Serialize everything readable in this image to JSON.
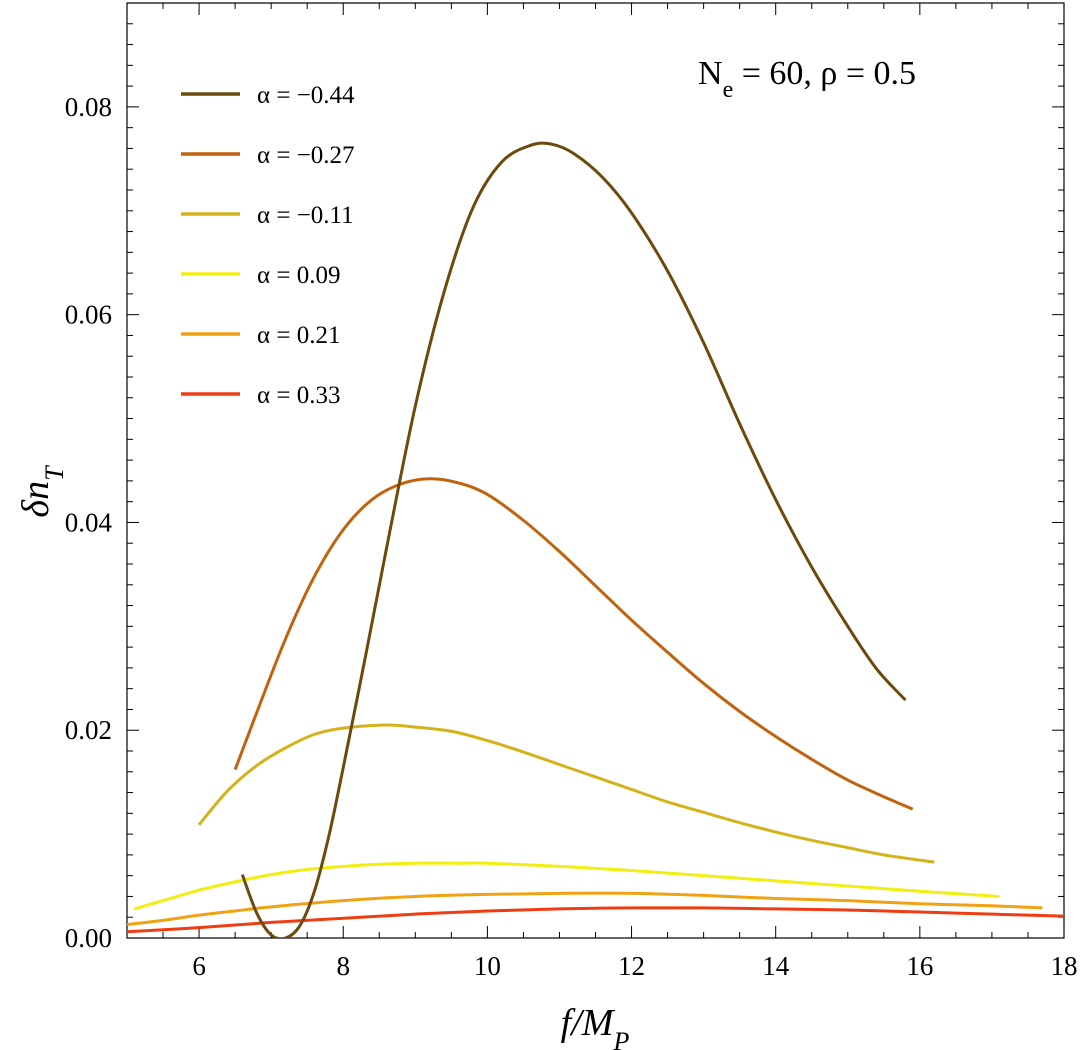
{
  "chart_data": {
    "type": "line",
    "annotation": "N_e = 60, ρ = 0.5",
    "xlabel": "f/M_P",
    "ylabel": "δn_T",
    "xlim": [
      5,
      18
    ],
    "ylim": [
      0,
      0.09
    ],
    "x_ticks": [
      "6",
      "8",
      "10",
      "12",
      "14",
      "16",
      "18"
    ],
    "y_ticks": [
      "0.00",
      "0.02",
      "0.04",
      "0.06",
      "0.08"
    ],
    "grid": false,
    "legend_position": "top-left",
    "series": [
      {
        "name": "α = −0.44",
        "color": "#6b4a0c",
        "points": [
          [
            6.6,
            0.0061
          ],
          [
            6.8,
            0.0024
          ],
          [
            7.0,
            0.0003
          ],
          [
            7.2,
            0.0
          ],
          [
            7.4,
            0.0012
          ],
          [
            7.6,
            0.0045
          ],
          [
            7.8,
            0.0098
          ],
          [
            8.0,
            0.0164
          ],
          [
            8.3,
            0.0268
          ],
          [
            8.6,
            0.0375
          ],
          [
            9.0,
            0.0512
          ],
          [
            9.4,
            0.0622
          ],
          [
            9.8,
            0.0703
          ],
          [
            10.2,
            0.0747
          ],
          [
            10.6,
            0.0763
          ],
          [
            10.9,
            0.0764
          ],
          [
            11.2,
            0.0755
          ],
          [
            11.6,
            0.0732
          ],
          [
            12.0,
            0.0698
          ],
          [
            12.5,
            0.0642
          ],
          [
            13.0,
            0.0573
          ],
          [
            13.5,
            0.0495
          ],
          [
            14.0,
            0.0422
          ],
          [
            14.5,
            0.0357
          ],
          [
            15.0,
            0.03
          ],
          [
            15.4,
            0.0259
          ],
          [
            15.8,
            0.0229
          ]
        ]
      },
      {
        "name": "α = −0.27",
        "color": "#c0620e",
        "points": [
          [
            6.5,
            0.0162
          ],
          [
            6.8,
            0.0217
          ],
          [
            7.2,
            0.0288
          ],
          [
            7.6,
            0.0348
          ],
          [
            8.0,
            0.0393
          ],
          [
            8.4,
            0.0422
          ],
          [
            8.8,
            0.0437
          ],
          [
            9.2,
            0.0442
          ],
          [
            9.6,
            0.0438
          ],
          [
            10.0,
            0.0427
          ],
          [
            10.5,
            0.0402
          ],
          [
            11.0,
            0.0372
          ],
          [
            11.5,
            0.0339
          ],
          [
            12.0,
            0.0306
          ],
          [
            12.5,
            0.0275
          ],
          [
            13.0,
            0.0245
          ],
          [
            13.5,
            0.0218
          ],
          [
            14.0,
            0.0194
          ],
          [
            14.5,
            0.0172
          ],
          [
            15.0,
            0.0152
          ],
          [
            15.5,
            0.0136
          ],
          [
            15.9,
            0.0124
          ]
        ]
      },
      {
        "name": "α = −0.11",
        "color": "#d4b21a",
        "points": [
          [
            6.0,
            0.0109
          ],
          [
            6.4,
            0.0142
          ],
          [
            6.8,
            0.0166
          ],
          [
            7.2,
            0.0183
          ],
          [
            7.6,
            0.0196
          ],
          [
            8.0,
            0.0202
          ],
          [
            8.6,
            0.0205
          ],
          [
            9.0,
            0.0203
          ],
          [
            9.5,
            0.0199
          ],
          [
            10.0,
            0.019
          ],
          [
            10.5,
            0.0179
          ],
          [
            11.0,
            0.0167
          ],
          [
            11.5,
            0.0155
          ],
          [
            12.0,
            0.0143
          ],
          [
            12.5,
            0.0131
          ],
          [
            13.0,
            0.0121
          ],
          [
            13.5,
            0.0111
          ],
          [
            14.0,
            0.0102
          ],
          [
            14.5,
            0.0094
          ],
          [
            15.0,
            0.0087
          ],
          [
            15.5,
            0.008
          ],
          [
            16.2,
            0.0073
          ]
        ]
      },
      {
        "name": "α = 0.09",
        "color": "#f2ee10",
        "points": [
          [
            5.1,
            0.0028
          ],
          [
            5.5,
            0.0036
          ],
          [
            6.0,
            0.0046
          ],
          [
            6.5,
            0.0054
          ],
          [
            7.0,
            0.0061
          ],
          [
            7.5,
            0.0066
          ],
          [
            8.0,
            0.0069
          ],
          [
            8.5,
            0.0071
          ],
          [
            9.0,
            0.0072
          ],
          [
            9.6,
            0.0072
          ],
          [
            10.0,
            0.0072
          ],
          [
            11.0,
            0.0069
          ],
          [
            12.0,
            0.0065
          ],
          [
            13.0,
            0.006
          ],
          [
            14.0,
            0.0055
          ],
          [
            15.0,
            0.005
          ],
          [
            16.0,
            0.0045
          ],
          [
            17.1,
            0.004
          ]
        ]
      },
      {
        "name": "α = 0.21",
        "color": "#f0a214",
        "points": [
          [
            5.0,
            0.0013
          ],
          [
            5.5,
            0.0017
          ],
          [
            6.0,
            0.0022
          ],
          [
            6.5,
            0.0026
          ],
          [
            7.0,
            0.003
          ],
          [
            8.0,
            0.0036
          ],
          [
            9.0,
            0.004
          ],
          [
            10.0,
            0.0042
          ],
          [
            11.0,
            0.0043
          ],
          [
            12.0,
            0.0043
          ],
          [
            13.0,
            0.0041
          ],
          [
            14.0,
            0.0038
          ],
          [
            15.0,
            0.0036
          ],
          [
            16.0,
            0.0033
          ],
          [
            17.0,
            0.0031
          ],
          [
            17.7,
            0.0029
          ]
        ]
      },
      {
        "name": "α = 0.33",
        "color": "#ee3d12",
        "points": [
          [
            5.0,
            0.0006
          ],
          [
            6.0,
            0.001
          ],
          [
            7.0,
            0.0015
          ],
          [
            8.0,
            0.0019
          ],
          [
            9.0,
            0.0023
          ],
          [
            10.0,
            0.0026
          ],
          [
            11.0,
            0.0028
          ],
          [
            12.0,
            0.0029
          ],
          [
            13.0,
            0.0029
          ],
          [
            14.0,
            0.0028
          ],
          [
            15.0,
            0.0027
          ],
          [
            16.0,
            0.0025
          ],
          [
            17.0,
            0.0023
          ],
          [
            18.0,
            0.0021
          ]
        ]
      }
    ]
  }
}
